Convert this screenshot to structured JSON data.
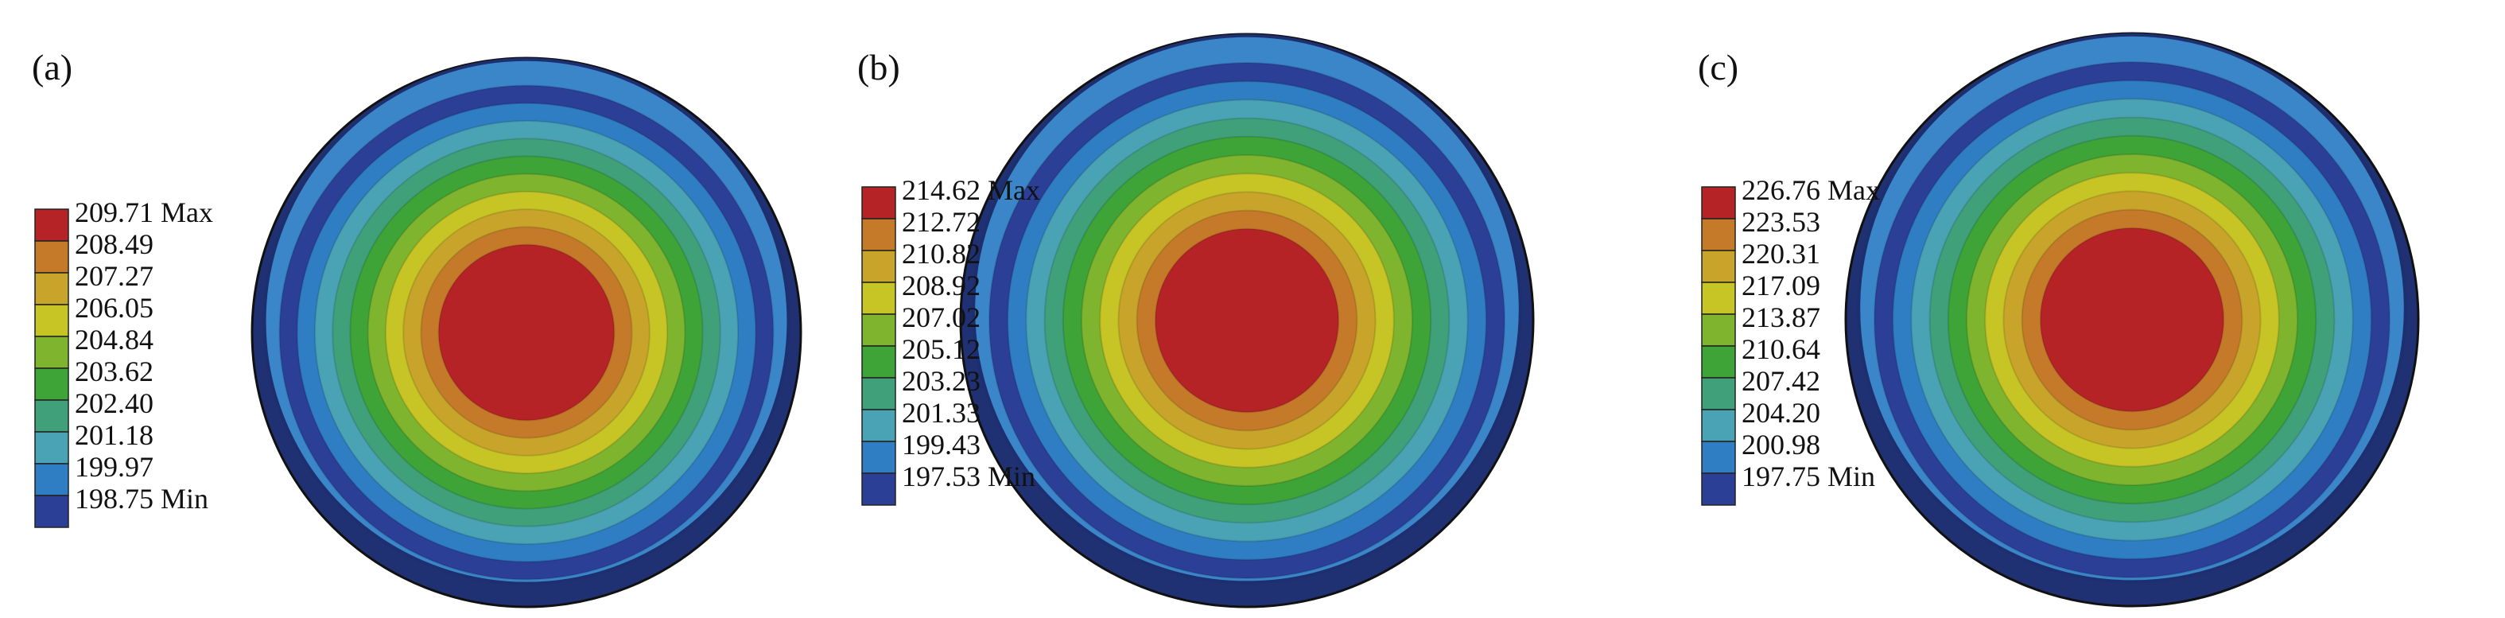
{
  "colors": {
    "ramp": [
      "#2b3f97",
      "#2f7dc2",
      "#4aa3b4",
      "#3fa07a",
      "#3ea437",
      "#7fb42f",
      "#c7c426",
      "#c8a52a",
      "#c57a2a",
      "#b52326"
    ],
    "outer_rim": "#1f3173",
    "rim_highlight": "#3a86c8",
    "legend_border": "#222222"
  },
  "panels": [
    {
      "label": "(a)",
      "legend": [
        "209.71 Max",
        "208.49",
        "207.27",
        "206.05",
        "204.84",
        "203.62",
        "202.40",
        "201.18",
        "199.97",
        "198.75 Min"
      ]
    },
    {
      "label": "(b)",
      "legend": [
        "214.62 Max",
        "212.72",
        "210.82",
        "208.92",
        "207.02",
        "205.12",
        "203.23",
        "201.33",
        "199.43",
        "197.53 Min"
      ]
    },
    {
      "label": "(c)",
      "legend": [
        "226.76 Max",
        "223.53",
        "220.31",
        "217.09",
        "213.87",
        "210.64",
        "207.42",
        "204.20",
        "200.98",
        "197.75 Min"
      ]
    }
  ]
}
